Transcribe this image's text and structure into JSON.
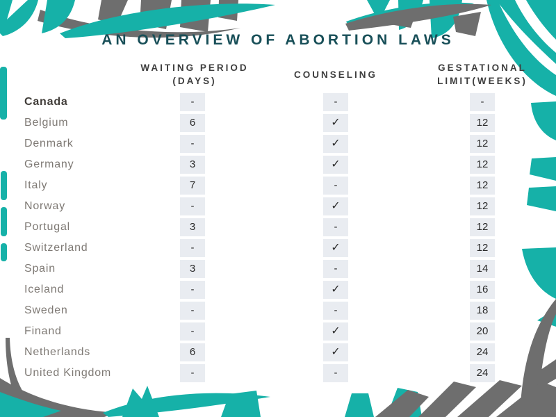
{
  "title": "AN OVERVIEW OF ABORTION LAWS",
  "symbols": {
    "check": "✓",
    "dash": "-"
  },
  "colors": {
    "leafTeal": "#16b1a8",
    "leafGray": "#6e6e6e",
    "titleText": "#184f58",
    "headerText": "#3e3e3e",
    "countryText": "#7e7974",
    "countryBoldText": "#413d39",
    "cellBg": "#e9ecf1",
    "cellText": "#2b2b2b",
    "background": "#ffffff"
  },
  "chart_data": {
    "type": "table",
    "title": "AN OVERVIEW OF ABORTION LAWS",
    "columns": [
      "country",
      "waiting_period_days",
      "counseling",
      "gestational_limit_weeks"
    ],
    "header_lines": {
      "waiting": [
        "WAITING PERIOD",
        "(DAYS)"
      ],
      "counseling": [
        "COUNSELING"
      ],
      "gestational": [
        "GESTATIONAL",
        "LIMIT(WEEKS)"
      ]
    },
    "rows": [
      {
        "country": "Canada",
        "emphasis": true,
        "waiting_period_days": "-",
        "counseling": false,
        "gestational_limit_weeks": "-"
      },
      {
        "country": "Belgium",
        "emphasis": false,
        "waiting_period_days": "6",
        "counseling": true,
        "gestational_limit_weeks": "12"
      },
      {
        "country": "Denmark",
        "emphasis": false,
        "waiting_period_days": "-",
        "counseling": true,
        "gestational_limit_weeks": "12"
      },
      {
        "country": "Germany",
        "emphasis": false,
        "waiting_period_days": "3",
        "counseling": true,
        "gestational_limit_weeks": "12"
      },
      {
        "country": "Italy",
        "emphasis": false,
        "waiting_period_days": "7",
        "counseling": false,
        "gestational_limit_weeks": "12"
      },
      {
        "country": "Norway",
        "emphasis": false,
        "waiting_period_days": "-",
        "counseling": true,
        "gestational_limit_weeks": "12"
      },
      {
        "country": "Portugal",
        "emphasis": false,
        "waiting_period_days": "3",
        "counseling": false,
        "gestational_limit_weeks": "12"
      },
      {
        "country": "Switzerland",
        "emphasis": false,
        "waiting_period_days": "-",
        "counseling": true,
        "gestational_limit_weeks": "12"
      },
      {
        "country": "Spain",
        "emphasis": false,
        "waiting_period_days": "3",
        "counseling": false,
        "gestational_limit_weeks": "14"
      },
      {
        "country": "Iceland",
        "emphasis": false,
        "waiting_period_days": "-",
        "counseling": true,
        "gestational_limit_weeks": "16"
      },
      {
        "country": "Sweden",
        "emphasis": false,
        "waiting_period_days": "-",
        "counseling": false,
        "gestational_limit_weeks": "18"
      },
      {
        "country": "Finand",
        "emphasis": false,
        "waiting_period_days": "-",
        "counseling": true,
        "gestational_limit_weeks": "20"
      },
      {
        "country": "Netherlands",
        "emphasis": false,
        "waiting_period_days": "6",
        "counseling": true,
        "gestational_limit_weeks": "24"
      },
      {
        "country": "United Kingdom",
        "emphasis": false,
        "waiting_period_days": "-",
        "counseling": false,
        "gestational_limit_weeks": "24"
      }
    ]
  }
}
